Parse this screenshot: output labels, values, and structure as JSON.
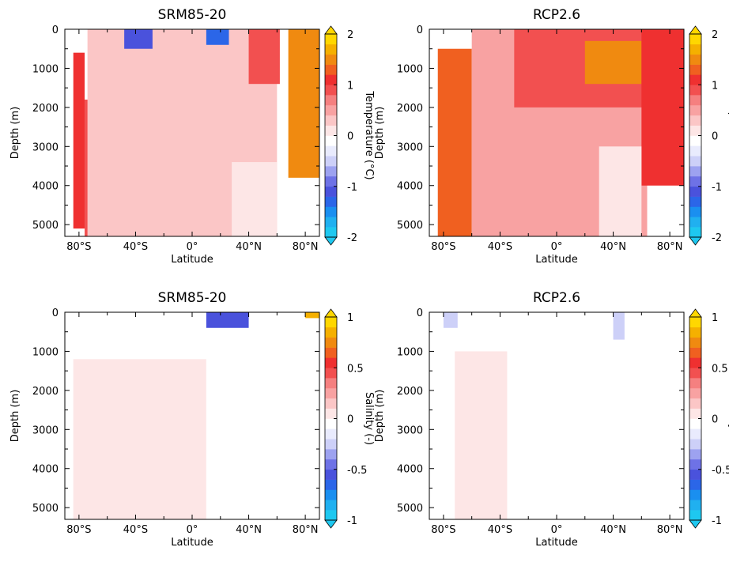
{
  "chart_data": [
    {
      "type": "heatmap",
      "title": "SRM85-20",
      "xlabel": "Latitude",
      "ylabel": "Depth (m)",
      "x_ticks": [
        "80°S",
        "40°S",
        "0°",
        "40°N",
        "80°N"
      ],
      "y_ticks": [
        "0",
        "1000",
        "2000",
        "3000",
        "4000",
        "5000"
      ],
      "xlim": [
        -90,
        90
      ],
      "ylim": [
        5300,
        0
      ],
      "colorbar": {
        "label": "Temperature (°C)",
        "ticks": [
          "2",
          "1",
          "0",
          "-1",
          "-2"
        ],
        "range": [
          -2,
          2
        ]
      },
      "regions": [
        {
          "lat": [
            -84,
            -76
          ],
          "depth": [
            600,
            5100
          ],
          "value": 1.1
        },
        {
          "lat": [
            -76,
            -62
          ],
          "depth": [
            1800,
            5300
          ],
          "value": 0.9
        },
        {
          "lat": [
            -74,
            60
          ],
          "depth": [
            0,
            5300
          ],
          "value": 0.3
        },
        {
          "lat": [
            28,
            60
          ],
          "depth": [
            3400,
            5300
          ],
          "value": 0.1
        },
        {
          "lat": [
            -48,
            -28
          ],
          "depth": [
            0,
            500
          ],
          "value": -1.2
        },
        {
          "lat": [
            10,
            26
          ],
          "depth": [
            0,
            400
          ],
          "value": -1.4
        },
        {
          "lat": [
            40,
            62
          ],
          "depth": [
            0,
            1400
          ],
          "value": 0.9
        },
        {
          "lat": [
            68,
            90
          ],
          "depth": [
            0,
            3800
          ],
          "value": 1.5
        }
      ]
    },
    {
      "type": "heatmap",
      "title": "RCP2.6",
      "xlabel": "Latitude",
      "ylabel": "Depth (m)",
      "x_ticks": [
        "80°S",
        "40°S",
        "0°",
        "40°N",
        "80°N"
      ],
      "y_ticks": [
        "0",
        "1000",
        "2000",
        "3000",
        "4000",
        "5000"
      ],
      "xlim": [
        -90,
        90
      ],
      "ylim": [
        5300,
        0
      ],
      "colorbar": {
        "label": "Temperature (°C)",
        "ticks": [
          "2",
          "1",
          "0",
          "-1",
          "-2"
        ],
        "range": [
          -2,
          2
        ]
      },
      "regions": [
        {
          "lat": [
            -84,
            -60
          ],
          "depth": [
            500,
            5300
          ],
          "value": 1.2
        },
        {
          "lat": [
            -60,
            64
          ],
          "depth": [
            0,
            5300
          ],
          "value": 0.4
        },
        {
          "lat": [
            -30,
            75
          ],
          "depth": [
            0,
            2000
          ],
          "value": 0.9
        },
        {
          "lat": [
            20,
            60
          ],
          "depth": [
            300,
            1400
          ],
          "value": 1.4
        },
        {
          "lat": [
            60,
            90
          ],
          "depth": [
            0,
            4000
          ],
          "value": 1.0
        },
        {
          "lat": [
            30,
            60
          ],
          "depth": [
            3000,
            5300
          ],
          "value": 0.05
        }
      ]
    },
    {
      "type": "heatmap",
      "title": "SRM85-20",
      "xlabel": "Latitude",
      "ylabel": "Depth (m)",
      "x_ticks": [
        "80°S",
        "40°S",
        "0°",
        "40°N",
        "80°N"
      ],
      "y_ticks": [
        "0",
        "1000",
        "2000",
        "3000",
        "4000",
        "5000"
      ],
      "xlim": [
        -90,
        90
      ],
      "ylim": [
        5300,
        0
      ],
      "colorbar": {
        "label": "Salinity (-)",
        "ticks": [
          "1",
          "0.5",
          "0",
          "-0.5",
          "-1"
        ],
        "range": [
          -1,
          1
        ]
      },
      "regions": [
        {
          "lat": [
            -84,
            90
          ],
          "depth": [
            0,
            1200
          ],
          "value": -0.08
        },
        {
          "lat": [
            -84,
            10
          ],
          "depth": [
            1200,
            5300
          ],
          "value": 0.06
        },
        {
          "lat": [
            10,
            50
          ],
          "depth": [
            1000,
            5300
          ],
          "value": -0.08
        },
        {
          "lat": [
            10,
            40
          ],
          "depth": [
            0,
            400
          ],
          "value": -0.6
        },
        {
          "lat": [
            80,
            90
          ],
          "depth": [
            0,
            150
          ],
          "value": 0.8
        }
      ]
    },
    {
      "type": "heatmap",
      "title": "RCP2.6",
      "xlabel": "Latitude",
      "ylabel": "Depth (m)",
      "x_ticks": [
        "80°S",
        "40°S",
        "0°",
        "40°N",
        "80°N"
      ],
      "y_ticks": [
        "0",
        "1000",
        "2000",
        "3000",
        "4000",
        "5000"
      ],
      "xlim": [
        -90,
        90
      ],
      "ylim": [
        5300,
        0
      ],
      "colorbar": {
        "label": "Salinity (-)",
        "ticks": [
          "1",
          "0.5",
          "0",
          "-0.5",
          "-1"
        ],
        "range": [
          -1,
          1
        ]
      },
      "regions": [
        {
          "lat": [
            -84,
            90
          ],
          "depth": [
            0,
            5300
          ],
          "value": -0.08
        },
        {
          "lat": [
            -72,
            -35
          ],
          "depth": [
            1000,
            5300
          ],
          "value": 0.06
        },
        {
          "lat": [
            -80,
            -70
          ],
          "depth": [
            0,
            400
          ],
          "value": -0.3
        },
        {
          "lat": [
            40,
            48
          ],
          "depth": [
            0,
            700
          ],
          "value": -0.3
        }
      ]
    }
  ]
}
